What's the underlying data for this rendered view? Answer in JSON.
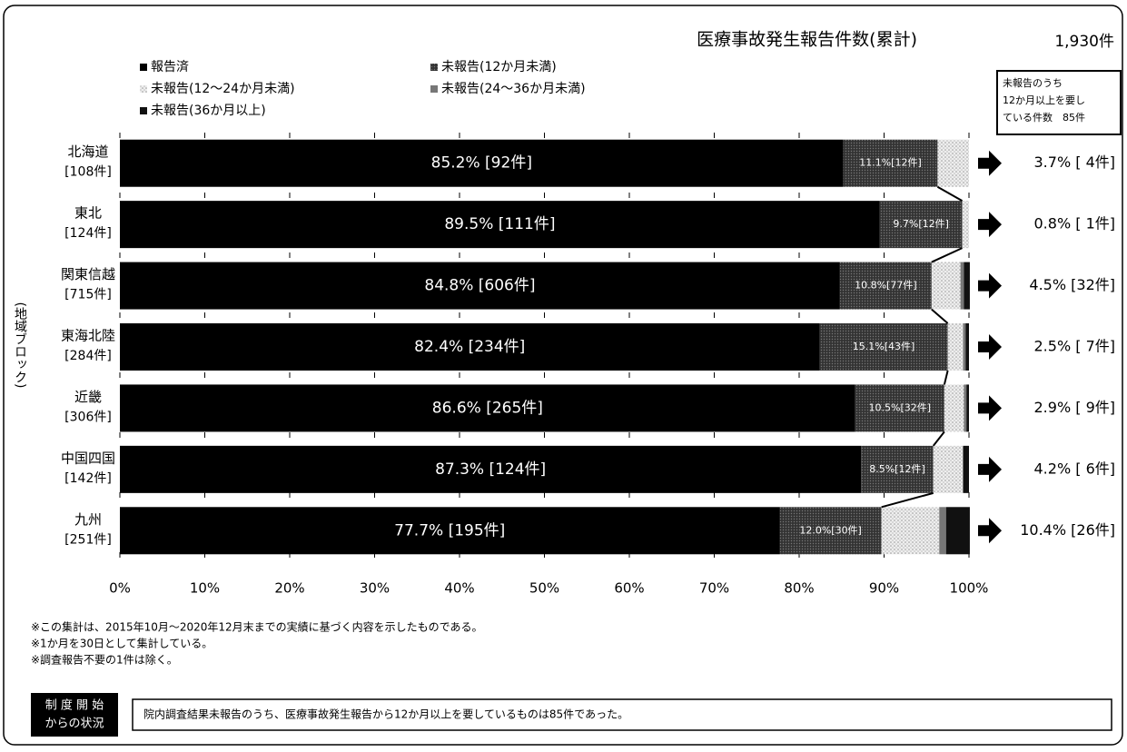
{
  "chart_data": {
    "type": "stacked-bar-horizontal",
    "title": "医療事故発生報告件数(累計)",
    "total": "1,930件",
    "note_box": [
      "未報告のうち",
      "12か月以上を要し",
      "ている件数　85件"
    ],
    "y_axis_label": "(地域ブロック)",
    "categories": [
      "北海道",
      "東北",
      "関東信越",
      "東海北陸",
      "近畿",
      "中国四国",
      "九州"
    ],
    "category_counts": [
      "[108件]",
      "[124件]",
      "[715件]",
      "[284件]",
      "[306件]",
      "[142件]",
      "[251件]"
    ],
    "series": [
      {
        "name": "報告済",
        "color": "#000000",
        "values": [
          85.2,
          89.5,
          84.8,
          82.4,
          86.6,
          87.3,
          77.7
        ],
        "value_labels": [
          "85.2% [92件]",
          "89.5% [111件]",
          "84.8% [606件]",
          "82.4% [234件]",
          "86.6% [265件]",
          "87.3% [124件]",
          "77.7% [195件]"
        ]
      },
      {
        "name": "未報告(12か月未満)",
        "color": "#3a3a3a",
        "values": [
          11.1,
          9.7,
          10.8,
          15.1,
          10.5,
          8.5,
          12.0
        ],
        "value_labels": [
          "11.1%[12件]",
          "9.7%[12件]",
          "10.8%[77件]",
          "15.1%[43件]",
          "10.5%[32件]",
          "8.5%[12件]",
          "12.0%[30件]"
        ]
      },
      {
        "name": "未報告(12～24か月未満)",
        "color": "#dcdcdc",
        "values": [
          3.7,
          0.8,
          3.4,
          1.8,
          2.3,
          3.5,
          6.8
        ]
      },
      {
        "name": "未報告(24～36か月未満)",
        "color": "#777777",
        "values": [
          0,
          0,
          0.4,
          0.3,
          0.3,
          0,
          0.8
        ]
      },
      {
        "name": "未報告(36か月以上)",
        "color": "#111111",
        "values": [
          0,
          0,
          0.7,
          0.4,
          0.3,
          0.7,
          2.8
        ]
      }
    ],
    "right_labels": [
      "3.7% [ 4件]",
      "0.8% [ 1件]",
      "4.5% [32件]",
      "2.5% [ 7件]",
      "2.9% [ 9件]",
      "4.2% [ 6件]",
      "10.4% [26件]"
    ],
    "xlim": [
      0,
      100
    ],
    "xticks": [
      {
        "value": 0,
        "label": "0%"
      },
      {
        "value": 10,
        "label": "10%"
      },
      {
        "value": 20,
        "label": "20%"
      },
      {
        "value": 30,
        "label": "30%"
      },
      {
        "value": 40,
        "label": "40%"
      },
      {
        "value": 50,
        "label": "50%"
      },
      {
        "value": 60,
        "label": "60%"
      },
      {
        "value": 70,
        "label": "70%"
      },
      {
        "value": 80,
        "label": "80%"
      },
      {
        "value": 90,
        "label": "90%"
      },
      {
        "value": 100,
        "label": "100%"
      }
    ],
    "footnotes": [
      "※この集計は、2015年10月～2020年12月末までの実績に基づく内容を示したものである。",
      "※1か月を30日として集計している。",
      "※調査報告不要の1件は除く。"
    ],
    "status_label": [
      "制 度 開 始",
      "からの状況"
    ],
    "status_text": "院内調査結果未報告のうち、医療事故発生報告から12か月以上を要しているものは85件であった。"
  }
}
